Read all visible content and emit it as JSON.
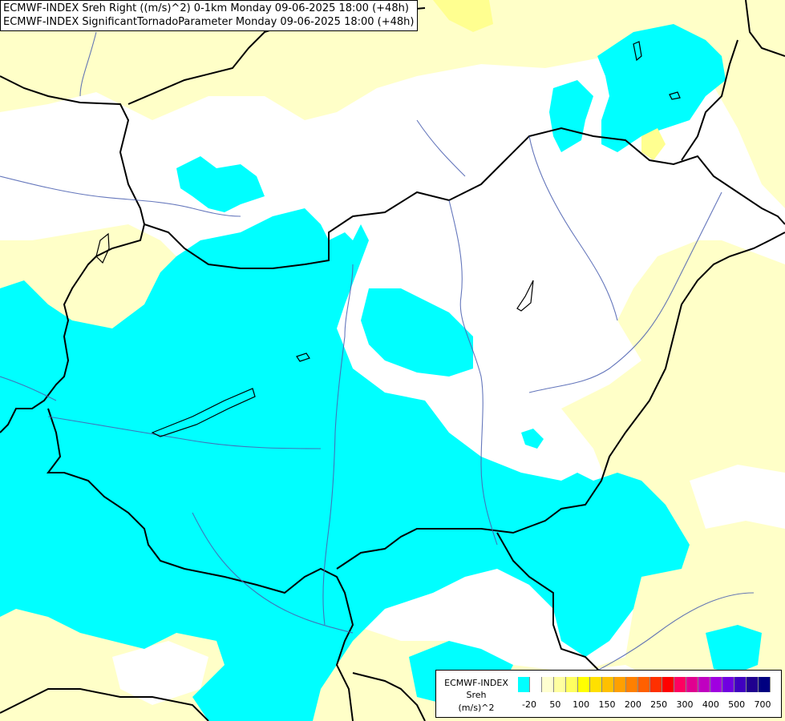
{
  "titles": {
    "line1": "ECMWF-INDEX Sreh Right ((m/s)^2) 0-1km Monday 09-06-2025 18:00 (+48h)",
    "line2": "ECMWF-INDEX SignificantTornadoParameter Monday 09-06-2025 18:00 (+48h)"
  },
  "legend": {
    "source": "ECMWF-INDEX",
    "parameter": "Sreh",
    "unit": "(m/s)^2",
    "ticks": [
      "-20",
      "50",
      "100",
      "150",
      "200",
      "250",
      "300",
      "400",
      "500",
      "700"
    ],
    "colors": [
      "#00ffff",
      "#ffffff",
      "#ffffd0",
      "#ffffa0",
      "#ffff60",
      "#ffff00",
      "#ffe000",
      "#ffc000",
      "#ffa000",
      "#ff8000",
      "#ff6000",
      "#ff3000",
      "#ff0000",
      "#ff0060",
      "#e00090",
      "#c000c0",
      "#a000e0",
      "#7000e0",
      "#4000c0",
      "#20008f",
      "#000080"
    ]
  },
  "map_colors": {
    "background": "#ffffc8",
    "low_sreh": "#00ffff",
    "neutral": "#ffffff",
    "border": "#000000",
    "river": "#4a5fb0"
  }
}
